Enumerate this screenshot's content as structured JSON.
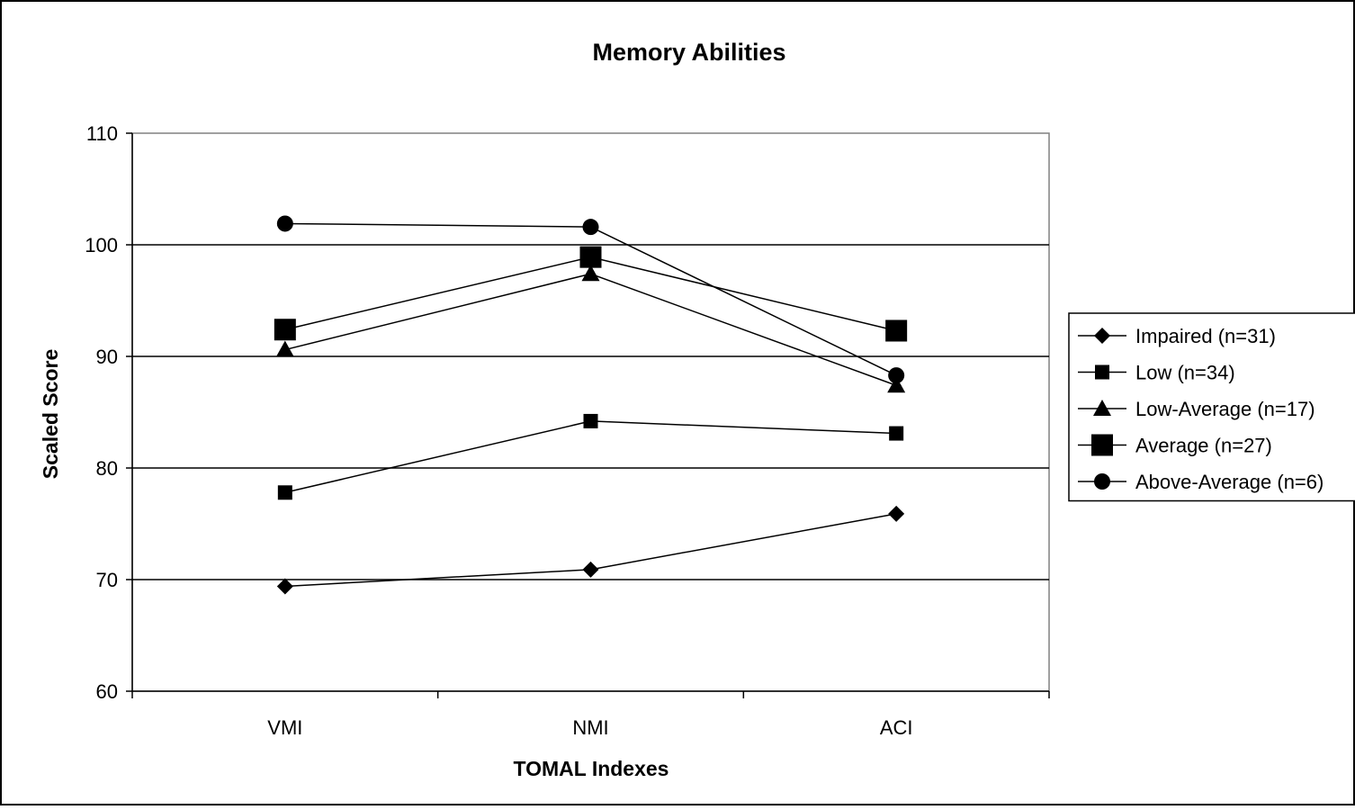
{
  "chart_data": {
    "type": "line",
    "title": "Memory Abilities",
    "xlabel": "TOMAL Indexes",
    "ylabel": "Scaled Score",
    "categories": [
      "VMI",
      "NMI",
      "ACI"
    ],
    "ylim": [
      60,
      110
    ],
    "yticks": [
      "60",
      "70",
      "80",
      "90",
      "100",
      "110"
    ],
    "grid": "horizontal",
    "legend_position": "right",
    "series": [
      {
        "name": "Impaired (n=31)",
        "marker": "diamond",
        "values": [
          69.4,
          70.9,
          75.9
        ]
      },
      {
        "name": "Low (n=34)",
        "marker": "square",
        "values": [
          77.8,
          84.2,
          83.1
        ]
      },
      {
        "name": "Low-Average (n=17)",
        "marker": "triangle",
        "values": [
          90.6,
          97.4,
          87.4
        ]
      },
      {
        "name": "Average (n=27)",
        "marker": "square-large",
        "values": [
          92.4,
          98.9,
          92.3
        ]
      },
      {
        "name": "Above-Average (n=6)",
        "marker": "circle",
        "values": [
          101.9,
          101.6,
          88.3
        ]
      }
    ]
  }
}
